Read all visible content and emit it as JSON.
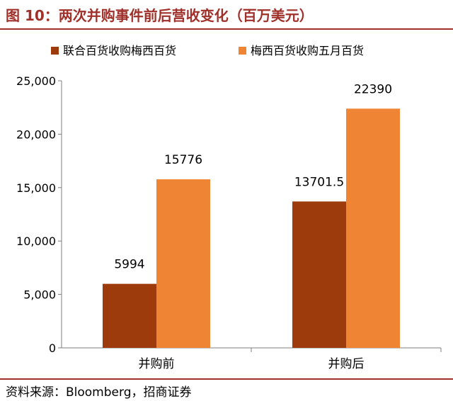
{
  "figure": {
    "title": "图 10：两次并购事件前后营收变化（百万美元）",
    "source": "资料来源：Bloomberg，招商证券"
  },
  "chart_data": {
    "type": "bar",
    "title": "",
    "xlabel": "",
    "ylabel": "",
    "categories": [
      "并购前",
      "并购后"
    ],
    "series": [
      {
        "name": "联合百货收购梅西百货",
        "values": [
          5994,
          13701.5
        ],
        "labels": [
          "5994",
          "13701.5"
        ],
        "color": "#9e3b0c"
      },
      {
        "name": "梅西百货收购五月百货",
        "values": [
          15776,
          22390
        ],
        "labels": [
          "15776",
          "22390"
        ],
        "color": "#ee8434"
      }
    ],
    "ylim": [
      0,
      25000
    ],
    "yticks": [
      0,
      5000,
      10000,
      15000,
      20000,
      25000
    ],
    "ytick_labels": [
      "0",
      "5,000",
      "10,000",
      "15,000",
      "20,000",
      "25,000"
    ],
    "grid": false,
    "legend": "top"
  }
}
